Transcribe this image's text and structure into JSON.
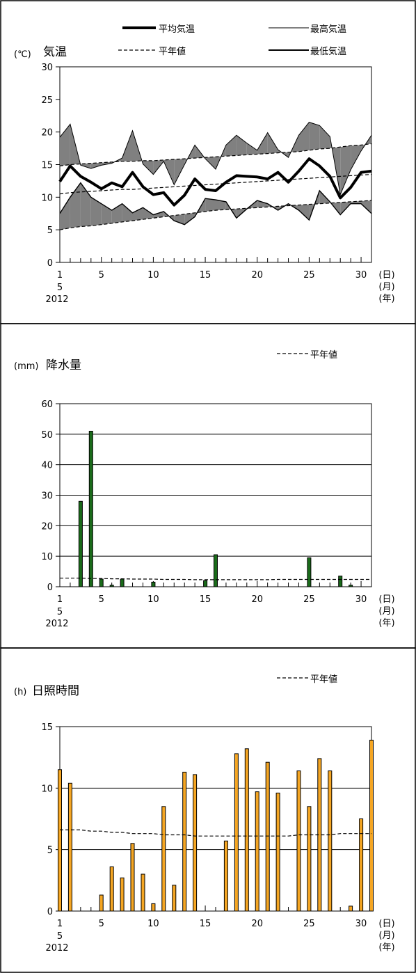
{
  "chart_data": [
    {
      "type": "line",
      "title": "気温",
      "ylabel": "(℃)",
      "ylim": [
        0,
        30
      ],
      "yticks": [
        "0",
        "5",
        "10",
        "15",
        "20",
        "25",
        "30"
      ],
      "xlim": [
        1,
        31
      ],
      "xticks": [
        "1",
        "5",
        "10",
        "15",
        "20",
        "25",
        "30"
      ],
      "x_unit_labels": [
        "(日)",
        "(月)",
        "(年)"
      ],
      "month_label": "5",
      "year_label": "2012",
      "grid": false,
      "shaded_deviation": true,
      "x": [
        1,
        2,
        3,
        4,
        5,
        6,
        7,
        8,
        9,
        10,
        11,
        12,
        13,
        14,
        15,
        16,
        17,
        18,
        19,
        20,
        21,
        22,
        23,
        24,
        25,
        26,
        27,
        28,
        29,
        30,
        31
      ],
      "series": [
        {
          "name": "平均気温",
          "style": "thick",
          "values": [
            12.4,
            14.8,
            13.2,
            12.3,
            11.3,
            12.2,
            11.6,
            13.8,
            11.6,
            10.4,
            10.7,
            8.8,
            10.3,
            12.8,
            11.2,
            11.0,
            12.3,
            13.3,
            13.2,
            13.1,
            12.8,
            13.8,
            12.3,
            14.0,
            15.9,
            14.8,
            13.2,
            9.9,
            11.5,
            13.8,
            14.0
          ]
        },
        {
          "name": "最高気温",
          "style": "thin",
          "values": [
            19.2,
            21.2,
            14.9,
            14.4,
            14.9,
            15.2,
            16.0,
            20.2,
            15.1,
            13.5,
            15.5,
            11.9,
            15.0,
            18.0,
            15.9,
            14.3,
            18.0,
            19.5,
            18.3,
            17.2,
            19.9,
            17.3,
            16.1,
            19.5,
            21.5,
            21.0,
            19.3,
            10.4,
            14.2,
            17.1,
            19.5
          ]
        },
        {
          "name": "最低気温",
          "style": "medium",
          "values": [
            7.5,
            10.0,
            12.2,
            10.0,
            9.0,
            8.0,
            9.0,
            7.6,
            8.4,
            7.3,
            7.8,
            6.4,
            5.8,
            7.0,
            9.8,
            9.6,
            9.3,
            6.8,
            8.2,
            9.5,
            9.0,
            8.0,
            9.0,
            8.0,
            6.5,
            11.0,
            9.3,
            7.3,
            9.0,
            9.0,
            7.5
          ]
        },
        {
          "name": "平年値",
          "style": "dashed",
          "normal_max": [
            14.8,
            15.0,
            15.1,
            15.2,
            15.3,
            15.4,
            15.5,
            15.5,
            15.6,
            15.6,
            15.7,
            15.8,
            15.9,
            16.0,
            16.1,
            16.2,
            16.3,
            16.4,
            16.5,
            16.6,
            16.7,
            16.8,
            16.9,
            17.0,
            17.2,
            17.4,
            17.5,
            17.7,
            17.9,
            18.0,
            18.2
          ],
          "normal_mean": [
            10.5,
            10.7,
            10.8,
            10.9,
            11.0,
            11.1,
            11.2,
            11.2,
            11.3,
            11.4,
            11.5,
            11.6,
            11.7,
            11.8,
            11.9,
            12.0,
            12.1,
            12.2,
            12.3,
            12.4,
            12.5,
            12.6,
            12.7,
            12.8,
            12.9,
            13.0,
            13.1,
            13.2,
            13.3,
            13.4,
            13.5
          ],
          "normal_min": [
            5.0,
            5.3,
            5.5,
            5.6,
            5.8,
            6.0,
            6.2,
            6.4,
            6.6,
            6.8,
            7.0,
            7.2,
            7.4,
            7.6,
            7.8,
            8.0,
            8.1,
            8.2,
            8.3,
            8.4,
            8.5,
            8.6,
            8.7,
            8.8,
            8.9,
            9.0,
            9.1,
            9.2,
            9.3,
            9.4,
            9.5
          ]
        }
      ],
      "legend": [
        "平均気温",
        "最高気温",
        "平年値",
        "最低気温"
      ],
      "legend_position": "top"
    },
    {
      "type": "bar",
      "title": "降水量",
      "ylabel": "(mm)",
      "ylim": [
        0,
        60
      ],
      "yticks": [
        "0",
        "10",
        "20",
        "30",
        "40",
        "50",
        "60"
      ],
      "xlim": [
        1,
        31
      ],
      "xticks": [
        "1",
        "5",
        "10",
        "15",
        "20",
        "25",
        "30"
      ],
      "x_unit_labels": [
        "(日)",
        "(月)",
        "(年)"
      ],
      "month_label": "5",
      "year_label": "2012",
      "grid": true,
      "bar_color": "#1a6b1a",
      "x": [
        1,
        2,
        3,
        4,
        5,
        6,
        7,
        8,
        9,
        10,
        11,
        12,
        13,
        14,
        15,
        16,
        17,
        18,
        19,
        20,
        21,
        22,
        23,
        24,
        25,
        26,
        27,
        28,
        29,
        30,
        31
      ],
      "values": [
        0,
        0,
        28,
        51,
        2.5,
        0.5,
        2.5,
        0,
        0,
        1.5,
        0,
        0,
        0,
        0,
        2,
        10.5,
        0,
        0,
        0,
        0,
        0,
        0,
        0,
        0,
        9.5,
        0,
        0,
        3.5,
        0.5,
        0,
        0
      ],
      "normal_line": {
        "name": "平年値",
        "values": [
          2.8,
          2.8,
          2.8,
          2.7,
          2.7,
          2.6,
          2.6,
          2.5,
          2.5,
          2.5,
          2.4,
          2.4,
          2.4,
          2.3,
          2.3,
          2.3,
          2.3,
          2.3,
          2.3,
          2.3,
          2.3,
          2.4,
          2.4,
          2.4,
          2.4,
          2.4,
          2.4,
          2.4,
          2.4,
          2.4,
          2.4
        ]
      },
      "legend": [
        "平年値"
      ],
      "legend_position": "top-right"
    },
    {
      "type": "bar",
      "title": "日照時間",
      "ylabel": "(h)",
      "ylim": [
        0,
        15
      ],
      "yticks": [
        "0",
        "5",
        "10",
        "15"
      ],
      "xlim": [
        1,
        31
      ],
      "xticks": [
        "1",
        "5",
        "10",
        "15",
        "20",
        "25",
        "30"
      ],
      "x_unit_labels": [
        "(日)",
        "(月)",
        "(年)"
      ],
      "month_label": "5",
      "year_label": "2012",
      "grid": true,
      "bar_color": "#f5a623",
      "x": [
        1,
        2,
        3,
        4,
        5,
        6,
        7,
        8,
        9,
        10,
        11,
        12,
        13,
        14,
        15,
        16,
        17,
        18,
        19,
        20,
        21,
        22,
        23,
        24,
        25,
        26,
        27,
        28,
        29,
        30,
        31
      ],
      "values": [
        11.5,
        10.4,
        0,
        0,
        1.3,
        3.6,
        2.7,
        5.5,
        3.0,
        0.6,
        8.5,
        2.1,
        11.3,
        11.1,
        0,
        0,
        5.7,
        12.8,
        13.2,
        9.7,
        12.1,
        9.6,
        0,
        11.4,
        8.5,
        12.4,
        11.4,
        0,
        0.4,
        7.5,
        13.9
      ],
      "normal_line": {
        "name": "平年値",
        "values": [
          6.6,
          6.6,
          6.6,
          6.5,
          6.5,
          6.4,
          6.4,
          6.3,
          6.3,
          6.3,
          6.2,
          6.2,
          6.2,
          6.1,
          6.1,
          6.1,
          6.1,
          6.1,
          6.1,
          6.1,
          6.1,
          6.1,
          6.1,
          6.2,
          6.2,
          6.2,
          6.2,
          6.3,
          6.3,
          6.3,
          6.3
        ]
      },
      "legend": [
        "平年値"
      ],
      "legend_position": "top-right"
    }
  ]
}
